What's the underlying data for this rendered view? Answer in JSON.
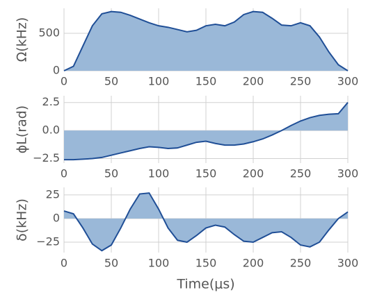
{
  "chart_data": [
    {
      "type": "area",
      "ylabel": "Ω(kHz)",
      "color": "#9ab8d8",
      "line_color": "#1f4e96",
      "grid": true,
      "x": [
        0,
        10,
        20,
        30,
        40,
        50,
        60,
        70,
        80,
        90,
        100,
        110,
        120,
        130,
        140,
        150,
        160,
        170,
        180,
        190,
        200,
        210,
        220,
        230,
        240,
        250,
        260,
        270,
        280,
        290,
        300
      ],
      "values": [
        0,
        60,
        330,
        600,
        760,
        790,
        780,
        740,
        690,
        640,
        600,
        580,
        550,
        520,
        540,
        600,
        620,
        600,
        650,
        750,
        790,
        780,
        700,
        610,
        600,
        640,
        600,
        450,
        250,
        80,
        0
      ],
      "xlim": [
        0,
        300
      ],
      "xticks": [
        0,
        50,
        100,
        150,
        200,
        250,
        300
      ],
      "ylim": [
        0,
        833
      ],
      "yticks": [
        0,
        500
      ]
    },
    {
      "type": "area",
      "ylabel": "ϕL(rad)",
      "color": "#9ab8d8",
      "line_color": "#1f4e96",
      "grid": true,
      "x": [
        0,
        10,
        20,
        30,
        40,
        50,
        60,
        70,
        80,
        90,
        100,
        110,
        120,
        130,
        140,
        150,
        160,
        170,
        180,
        190,
        200,
        210,
        220,
        230,
        240,
        250,
        260,
        270,
        280,
        290,
        300
      ],
      "values": [
        -2.6,
        -2.6,
        -2.55,
        -2.5,
        -2.4,
        -2.2,
        -2.0,
        -1.8,
        -1.6,
        -1.45,
        -1.5,
        -1.6,
        -1.55,
        -1.3,
        -1.05,
        -0.95,
        -1.15,
        -1.3,
        -1.3,
        -1.2,
        -1.0,
        -0.75,
        -0.4,
        0.0,
        0.45,
        0.85,
        1.15,
        1.35,
        1.45,
        1.5,
        2.5
      ],
      "xlim": [
        0,
        300
      ],
      "xticks": [
        0,
        50,
        100,
        150,
        200,
        250,
        300
      ],
      "ylim": [
        -2.9,
        3.1
      ],
      "yticks": [
        {
          "value": -2.5,
          "label": "−2.5"
        },
        {
          "value": 0,
          "label": "0.0"
        },
        2.5
      ]
    },
    {
      "type": "area",
      "ylabel": "δ(kHz)",
      "xlabel": "Time(μs)",
      "color": "#9ab8d8",
      "line_color": "#1f4e96",
      "grid": true,
      "x": [
        0,
        10,
        20,
        30,
        40,
        50,
        60,
        70,
        80,
        90,
        100,
        110,
        120,
        130,
        140,
        150,
        160,
        170,
        180,
        190,
        200,
        210,
        220,
        230,
        240,
        250,
        260,
        270,
        280,
        290,
        300
      ],
      "values": [
        8,
        5,
        -10,
        -27,
        -34,
        -28,
        -10,
        10,
        26,
        27,
        10,
        -10,
        -23,
        -25,
        -18,
        -10,
        -7,
        -9,
        -17,
        -24,
        -25,
        -20,
        -15,
        -14,
        -20,
        -28,
        -30,
        -25,
        -12,
        0,
        7
      ],
      "xlim": [
        0,
        300
      ],
      "xticks": [
        0,
        50,
        100,
        150,
        200,
        250,
        300
      ],
      "ylim": [
        -36,
        33
      ],
      "yticks": [
        {
          "value": -25,
          "label": "−25"
        },
        0,
        25
      ]
    }
  ]
}
